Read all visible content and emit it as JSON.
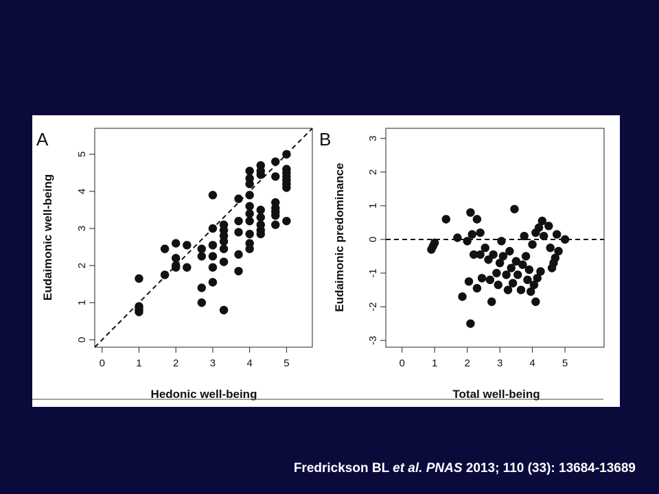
{
  "citation": {
    "authors": "Fredrickson BL",
    "etal": "et al.",
    "journal": "PNAS",
    "details": "2013; 110 (33): 13684-13689"
  },
  "colors": {
    "background": "#0b0b3b",
    "panel": "#ffffff",
    "points": "#111111"
  },
  "chart_data": [
    {
      "type": "scatter",
      "panel_label": "A",
      "xlabel": "Hedonic well-being",
      "ylabel": "Eudaimonic well-being",
      "xlim": [
        -0.2,
        5.7
      ],
      "ylim": [
        -0.2,
        5.7
      ],
      "xticks": [
        "0",
        "1",
        "2",
        "3",
        "4",
        "5"
      ],
      "yticks": [
        "0",
        "1",
        "2",
        "3",
        "4",
        "5"
      ],
      "grid": false,
      "reference_line": {
        "style": "dashed",
        "from": [
          -0.2,
          -0.2
        ],
        "to": [
          5.7,
          5.7
        ]
      },
      "points": [
        [
          1,
          1.65
        ],
        [
          1,
          0.9
        ],
        [
          1,
          0.8
        ],
        [
          1,
          0.75
        ],
        [
          1,
          0.85
        ],
        [
          1.7,
          1.75
        ],
        [
          1.7,
          2.45
        ],
        [
          2,
          2.6
        ],
        [
          2,
          2.2
        ],
        [
          2,
          2.0
        ],
        [
          2,
          1.95
        ],
        [
          2.3,
          2.55
        ],
        [
          2.3,
          1.95
        ],
        [
          2.7,
          2.45
        ],
        [
          2.7,
          2.25
        ],
        [
          2.7,
          1.4
        ],
        [
          2.7,
          1.0
        ],
        [
          3,
          3.9
        ],
        [
          3,
          3.0
        ],
        [
          3,
          2.55
        ],
        [
          3,
          2.25
        ],
        [
          3,
          1.95
        ],
        [
          3,
          1.55
        ],
        [
          3.3,
          3.1
        ],
        [
          3.3,
          2.95
        ],
        [
          3.3,
          2.8
        ],
        [
          3.3,
          2.65
        ],
        [
          3.3,
          2.45
        ],
        [
          3.3,
          2.1
        ],
        [
          3.3,
          0.8
        ],
        [
          3.7,
          3.8
        ],
        [
          3.7,
          3.2
        ],
        [
          3.7,
          2.9
        ],
        [
          3.7,
          2.3
        ],
        [
          3.7,
          1.85
        ],
        [
          4,
          4.55
        ],
        [
          4,
          4.35
        ],
        [
          4,
          4.2
        ],
        [
          4,
          3.9
        ],
        [
          4,
          3.6
        ],
        [
          4,
          3.4
        ],
        [
          4,
          3.2
        ],
        [
          4,
          2.85
        ],
        [
          4,
          2.6
        ],
        [
          4,
          2.45
        ],
        [
          4.3,
          4.7
        ],
        [
          4.3,
          4.55
        ],
        [
          4.3,
          4.45
        ],
        [
          4.3,
          3.5
        ],
        [
          4.3,
          3.3
        ],
        [
          4.3,
          3.1
        ],
        [
          4.3,
          2.95
        ],
        [
          4.3,
          2.85
        ],
        [
          4.7,
          4.8
        ],
        [
          4.7,
          4.4
        ],
        [
          4.7,
          3.7
        ],
        [
          4.7,
          3.55
        ],
        [
          4.7,
          3.45
        ],
        [
          4.7,
          3.35
        ],
        [
          4.7,
          3.1
        ],
        [
          5,
          5.0
        ],
        [
          5,
          4.6
        ],
        [
          5,
          4.5
        ],
        [
          5,
          4.4
        ],
        [
          5,
          4.3
        ],
        [
          5,
          4.2
        ],
        [
          5,
          4.1
        ],
        [
          5,
          3.2
        ]
      ]
    },
    {
      "type": "scatter",
      "panel_label": "B",
      "xlabel": "Total well-being",
      "ylabel": "Eudaimonic predominance",
      "xlim": [
        -0.5,
        6.2
      ],
      "ylim": [
        -3.2,
        3.3
      ],
      "xticks": [
        "0",
        "1",
        "2",
        "3",
        "4",
        "5"
      ],
      "yticks": [
        "-3",
        "-2",
        "-1",
        "0",
        "1",
        "2",
        "3"
      ],
      "grid": false,
      "reference_line": {
        "style": "dashed",
        "y": 0
      },
      "points": [
        [
          0.9,
          -0.3
        ],
        [
          0.95,
          -0.2
        ],
        [
          1,
          -0.1
        ],
        [
          1.35,
          0.6
        ],
        [
          1.7,
          0.05
        ],
        [
          1.85,
          -1.7
        ],
        [
          2.05,
          -1.25
        ],
        [
          2.0,
          -0.05
        ],
        [
          2.1,
          0.8
        ],
        [
          2.1,
          -2.5
        ],
        [
          2.15,
          0.15
        ],
        [
          2.2,
          -0.45
        ],
        [
          2.3,
          0.6
        ],
        [
          2.3,
          -1.45
        ],
        [
          2.4,
          0.2
        ],
        [
          2.4,
          -0.45
        ],
        [
          2.45,
          -1.15
        ],
        [
          2.55,
          -0.25
        ],
        [
          2.65,
          -0.6
        ],
        [
          2.7,
          -1.2
        ],
        [
          2.75,
          -1.85
        ],
        [
          2.8,
          -0.45
        ],
        [
          2.9,
          -1.0
        ],
        [
          2.95,
          -1.35
        ],
        [
          3.0,
          -0.7
        ],
        [
          3.05,
          -0.05
        ],
        [
          3.1,
          -0.5
        ],
        [
          3.2,
          -1.05
        ],
        [
          3.25,
          -1.5
        ],
        [
          3.3,
          -0.35
        ],
        [
          3.35,
          -0.85
        ],
        [
          3.4,
          -1.3
        ],
        [
          3.45,
          0.9
        ],
        [
          3.5,
          -0.65
        ],
        [
          3.55,
          -1.05
        ],
        [
          3.65,
          -1.5
        ],
        [
          3.7,
          -0.75
        ],
        [
          3.75,
          0.1
        ],
        [
          3.8,
          -0.5
        ],
        [
          3.85,
          -1.2
        ],
        [
          3.9,
          -0.9
        ],
        [
          3.95,
          -1.55
        ],
        [
          4.0,
          -0.15
        ],
        [
          4.05,
          -1.35
        ],
        [
          4.1,
          0.2
        ],
        [
          4.1,
          -1.85
        ],
        [
          4.15,
          -1.15
        ],
        [
          4.2,
          0.35
        ],
        [
          4.25,
          -0.95
        ],
        [
          4.3,
          0.55
        ],
        [
          4.35,
          0.1
        ],
        [
          4.5,
          0.4
        ],
        [
          4.55,
          -0.25
        ],
        [
          4.6,
          -0.85
        ],
        [
          4.65,
          -0.7
        ],
        [
          4.7,
          -0.55
        ],
        [
          4.75,
          0.15
        ],
        [
          4.8,
          -0.35
        ],
        [
          5.0,
          0.0
        ]
      ]
    }
  ]
}
